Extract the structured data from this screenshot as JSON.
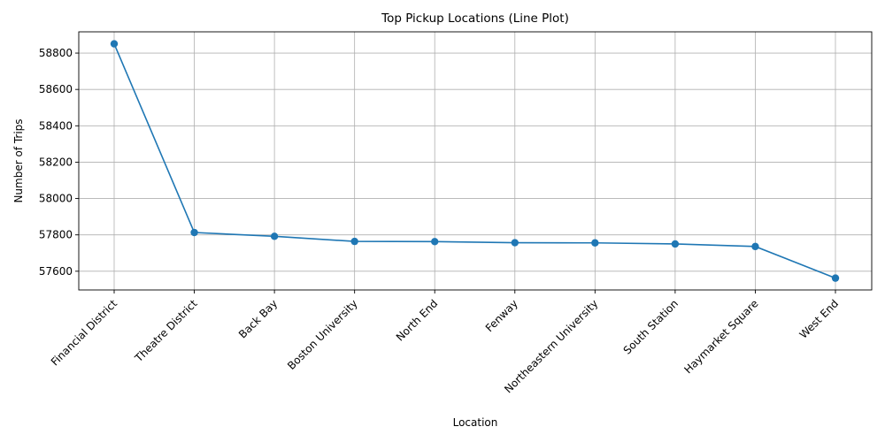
{
  "chart_data": {
    "type": "line",
    "title": "Top Pickup Locations (Line Plot)",
    "xlabel": "Location",
    "ylabel": "Number of Trips",
    "categories": [
      "Financial District",
      "Theatre District",
      "Back Bay",
      "Boston University",
      "North End",
      "Fenway",
      "Northeastern University",
      "South Station",
      "Haymarket Square",
      "West End"
    ],
    "values": [
      58851,
      57813,
      57792,
      57764,
      57763,
      57757,
      57756,
      57750,
      57736,
      57562
    ],
    "ylim": [
      57497,
      58917
    ],
    "yticks": [
      57600,
      57800,
      58000,
      58200,
      58400,
      58600,
      58800
    ],
    "grid": true,
    "marker": "circle",
    "color": "#1f77b4"
  }
}
